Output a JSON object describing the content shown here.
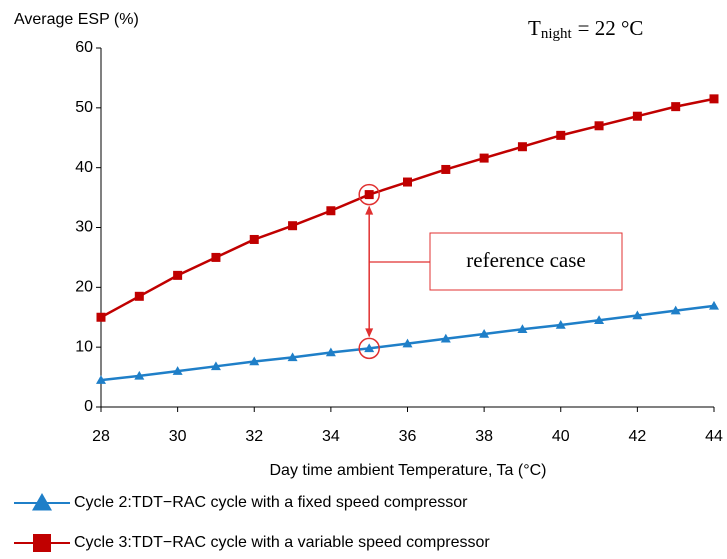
{
  "chart_data": {
    "type": "line",
    "y_label": "Average ESP (%)",
    "x_label": "Day time ambient Temperature, Ta (°C)",
    "condition": {
      "base": "T",
      "sub": "night",
      "rest": "= 22 °C"
    },
    "annotation": {
      "text": "reference case",
      "x": 35
    },
    "x": [
      28,
      29,
      30,
      31,
      32,
      33,
      34,
      35,
      36,
      37,
      38,
      39,
      40,
      41,
      42,
      43,
      44
    ],
    "series": [
      {
        "name": "Cycle 2:TDT−RAC cycle with a fixed speed compressor",
        "color": "#1f7fc8",
        "marker": "triangle",
        "values": [
          4.5,
          5.2,
          6.0,
          6.8,
          7.6,
          8.3,
          9.1,
          9.8,
          10.6,
          11.4,
          12.2,
          13.0,
          13.7,
          14.5,
          15.3,
          16.1,
          16.9
        ]
      },
      {
        "name": "Cycle 3:TDT−RAC cycle with a variable speed compressor",
        "color": "#c00000",
        "marker": "square",
        "values": [
          15.0,
          18.5,
          22.0,
          25.0,
          28.0,
          30.3,
          32.8,
          35.5,
          37.6,
          39.7,
          41.6,
          43.5,
          45.4,
          47.0,
          48.6,
          50.2,
          51.5
        ]
      }
    ],
    "xlim": [
      28,
      44
    ],
    "xticks": [
      28,
      30,
      32,
      34,
      36,
      38,
      40,
      42,
      44
    ],
    "ylim": [
      0,
      60
    ],
    "yticks": [
      0,
      10,
      20,
      30,
      40,
      50,
      60
    ],
    "grid": false
  }
}
